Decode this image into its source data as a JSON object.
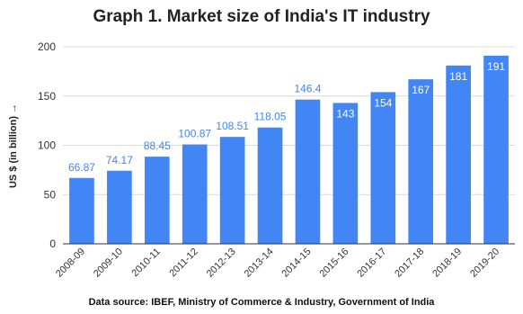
{
  "chart_data": {
    "type": "bar",
    "title": "Graph 1. Market size of India's IT industry",
    "ylabel": "US $ (in billion) →",
    "xlabel": "",
    "source": "Data source: IBEF, Ministry of Commerce & Industry, Government of India",
    "categories": [
      "2008-09",
      "2009-10",
      "2010-11",
      "2011-12",
      "2012-13",
      "2013-14",
      "2014-15",
      "2015-16",
      "2016-17",
      "2017-18",
      "2018-19",
      "2019-20"
    ],
    "values": [
      66.87,
      74.17,
      88.45,
      100.87,
      108.51,
      118.05,
      146.4,
      143,
      154,
      167,
      181,
      191
    ],
    "labels": [
      "66.87",
      "74.17",
      "88.45",
      "100.87",
      "108.51",
      "118.05",
      "146.4",
      "143",
      "154",
      "167",
      "181",
      "191"
    ],
    "label_inside": [
      false,
      false,
      false,
      false,
      false,
      false,
      false,
      true,
      true,
      true,
      true,
      true
    ],
    "ylim": [
      0,
      200
    ],
    "yticks": [
      0,
      50,
      100,
      150,
      200
    ],
    "grid": true,
    "legend": "none",
    "colors": {
      "bar": "#4285f4",
      "label_outside": "#4285f4",
      "label_inside": "#ffffff",
      "grid": "#d9d9d9",
      "axis": "#333333",
      "text": "#333333"
    }
  }
}
